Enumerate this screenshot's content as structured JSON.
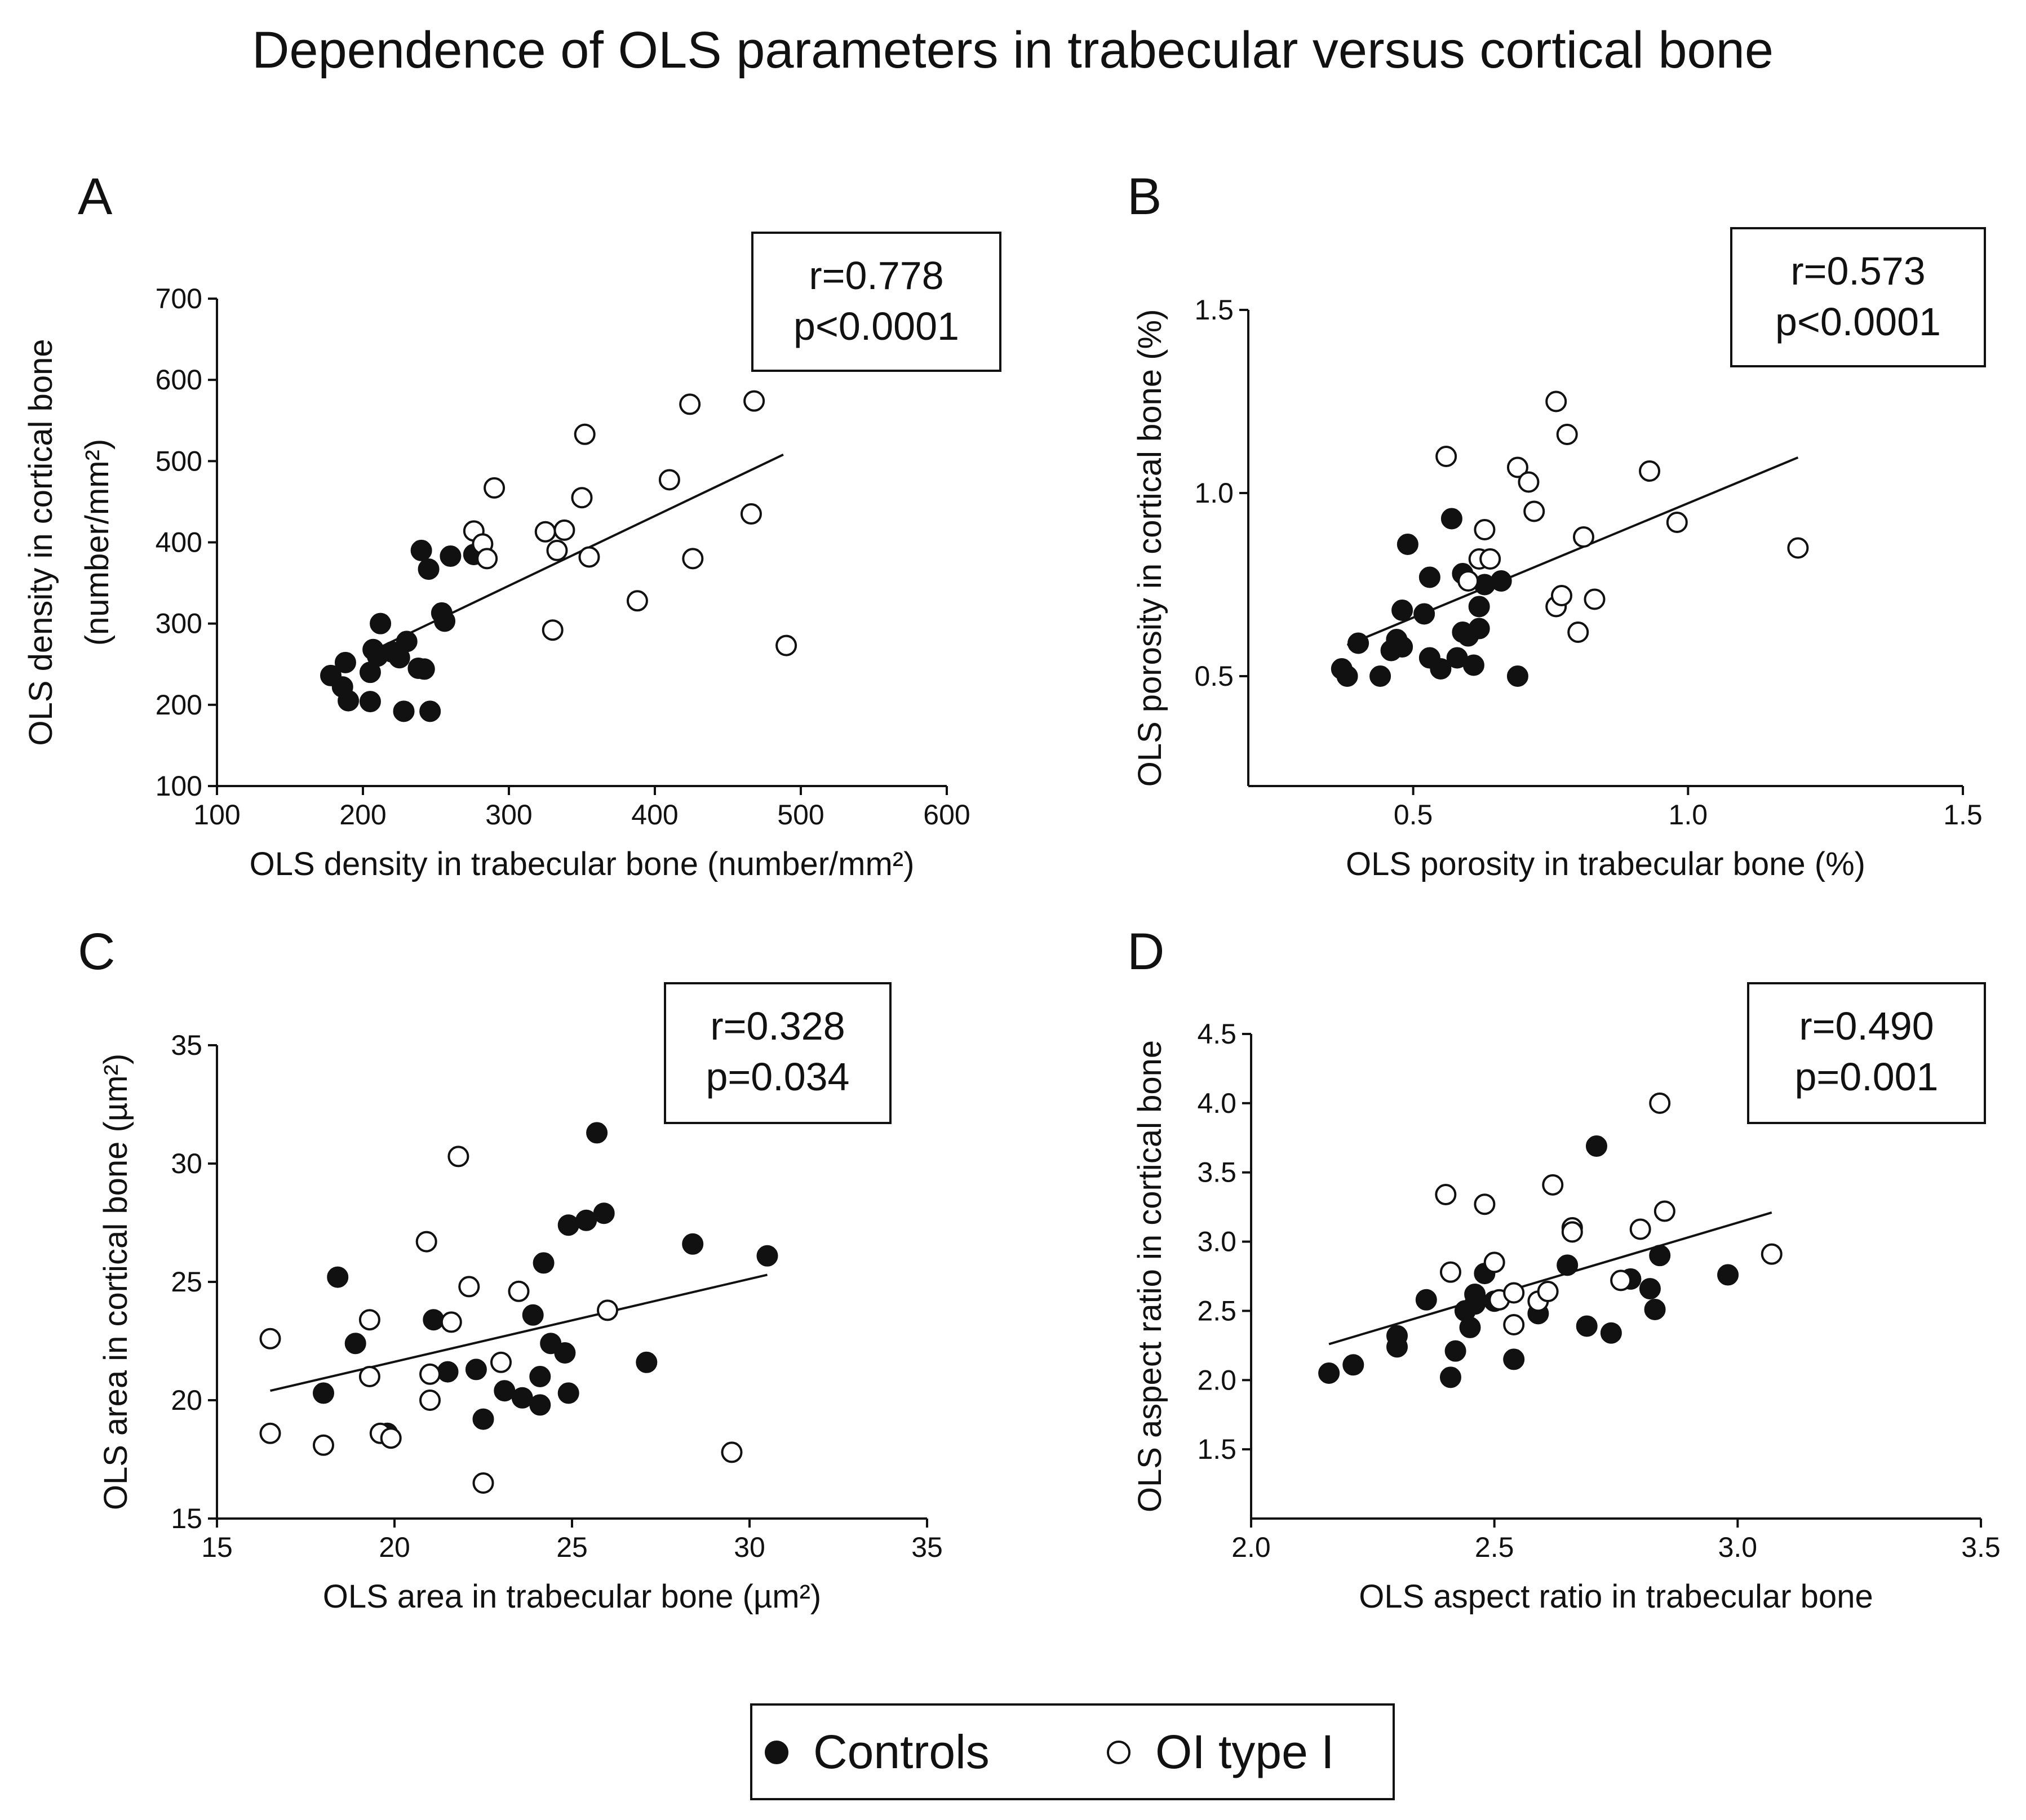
{
  "figure_title": "Dependence of OLS parameters in trabecular versus cortical bone",
  "legend": {
    "items": [
      {
        "label": "Controls",
        "marker": "filled-circle",
        "color": "#111111"
      },
      {
        "label": "OI type I",
        "marker": "open-circle",
        "color": "#ffffff"
      }
    ]
  },
  "chart_data": [
    {
      "panel": "A",
      "type": "scatter",
      "xlabel": "OLS density in trabecular bone (number/mm²)",
      "ylabel_line1": "OLS density in cortical bone",
      "ylabel_line2": "(number/mm²)",
      "xlim": [
        100,
        600
      ],
      "ylim": [
        100,
        700
      ],
      "xticks": [
        100,
        200,
        300,
        400,
        500,
        600
      ],
      "yticks": [
        100,
        200,
        300,
        400,
        500,
        600,
        700
      ],
      "stats": {
        "r": "r=0.778",
        "p": "p<0.0001"
      },
      "regression": {
        "x1": 205,
        "y1": 265,
        "x2": 488,
        "y2": 508
      },
      "series": [
        {
          "name": "Controls",
          "filled": true,
          "points": [
            [
              178,
              236
            ],
            [
              186,
              222
            ],
            [
              188,
              252
            ],
            [
              190,
              205
            ],
            [
              205,
              204
            ],
            [
              205,
              240
            ],
            [
              207,
              268
            ],
            [
              210,
              260
            ],
            [
              212,
              300
            ],
            [
              220,
              265
            ],
            [
              225,
              258
            ],
            [
              230,
              278
            ],
            [
              228,
              192
            ],
            [
              238,
              245
            ],
            [
              240,
              390
            ],
            [
              242,
              244
            ],
            [
              245,
              367
            ],
            [
              246,
              192
            ],
            [
              254,
              313
            ],
            [
              256,
              303
            ],
            [
              260,
              383
            ],
            [
              276,
              385
            ]
          ]
        },
        {
          "name": "OI type I",
          "filled": false,
          "points": [
            [
              276,
              414
            ],
            [
              282,
              398
            ],
            [
              285,
              380
            ],
            [
              290,
              467
            ],
            [
              325,
              413
            ],
            [
              330,
              292
            ],
            [
              333,
              390
            ],
            [
              338,
              415
            ],
            [
              350,
              455
            ],
            [
              352,
              533
            ],
            [
              355,
              382
            ],
            [
              388,
              328
            ],
            [
              410,
              477
            ],
            [
              424,
              570
            ],
            [
              426,
              380
            ],
            [
              466,
              435
            ],
            [
              468,
              574
            ],
            [
              490,
              273
            ]
          ]
        }
      ]
    },
    {
      "panel": "B",
      "type": "scatter",
      "xlabel": "OLS porosity in trabecular bone (%)",
      "ylabel_line1": "OLS porosity in cortical bone (%)",
      "ylabel_line2": "",
      "xlim": [
        0.2,
        1.5
      ],
      "ylim": [
        0.2,
        1.5
      ],
      "xticks": [
        0.5,
        1.0,
        1.5
      ],
      "yticks": [
        0.5,
        1.0,
        1.5
      ],
      "stats": {
        "r": "r=0.573",
        "p": "p<0.0001"
      },
      "regression": {
        "x1": 0.38,
        "y1": 0.585,
        "x2": 1.2,
        "y2": 1.097
      },
      "series": [
        {
          "name": "Controls",
          "filled": true,
          "points": [
            [
              0.37,
              0.52
            ],
            [
              0.38,
              0.5
            ],
            [
              0.4,
              0.59
            ],
            [
              0.44,
              0.5
            ],
            [
              0.46,
              0.57
            ],
            [
              0.47,
              0.6
            ],
            [
              0.48,
              0.58
            ],
            [
              0.48,
              0.68
            ],
            [
              0.49,
              0.86
            ],
            [
              0.52,
              0.67
            ],
            [
              0.53,
              0.77
            ],
            [
              0.53,
              0.55
            ],
            [
              0.55,
              0.52
            ],
            [
              0.57,
              0.93
            ],
            [
              0.58,
              0.55
            ],
            [
              0.59,
              0.62
            ],
            [
              0.59,
              0.78
            ],
            [
              0.6,
              0.61
            ],
            [
              0.61,
              0.53
            ],
            [
              0.62,
              0.63
            ],
            [
              0.62,
              0.69
            ],
            [
              0.63,
              0.75
            ],
            [
              0.66,
              0.76
            ],
            [
              0.69,
              0.5
            ]
          ]
        },
        {
          "name": "OI type I",
          "filled": false,
          "points": [
            [
              0.56,
              1.1
            ],
            [
              0.6,
              0.76
            ],
            [
              0.62,
              0.82
            ],
            [
              0.63,
              0.9
            ],
            [
              0.64,
              0.82
            ],
            [
              0.69,
              1.07
            ],
            [
              0.71,
              1.03
            ],
            [
              0.72,
              0.95
            ],
            [
              0.76,
              1.25
            ],
            [
              0.76,
              0.69
            ],
            [
              0.77,
              0.72
            ],
            [
              0.78,
              1.16
            ],
            [
              0.8,
              0.62
            ],
            [
              0.81,
              0.88
            ],
            [
              0.83,
              0.71
            ],
            [
              0.93,
              1.06
            ],
            [
              0.98,
              0.92
            ],
            [
              1.2,
              0.85
            ]
          ]
        }
      ]
    },
    {
      "panel": "C",
      "type": "scatter",
      "xlabel": "OLS area in trabecular bone (µm²)",
      "ylabel_line1": "OLS area in cortical bone (µm²)",
      "ylabel_line2": "",
      "xlim": [
        15,
        35
      ],
      "ylim": [
        15,
        35
      ],
      "xticks": [
        15,
        20,
        25,
        30,
        35
      ],
      "yticks": [
        15,
        20,
        25,
        30,
        35
      ],
      "stats": {
        "r": "r=0.328",
        "p": "p=0.034"
      },
      "regression": {
        "x1": 16.5,
        "y1": 20.4,
        "x2": 30.5,
        "y2": 25.3
      },
      "series": [
        {
          "name": "Controls",
          "filled": true,
          "points": [
            [
              18,
              20.3
            ],
            [
              18.4,
              25.2
            ],
            [
              18.9,
              22.4
            ],
            [
              19.8,
              18.6
            ],
            [
              21.1,
              23.4
            ],
            [
              21.5,
              21.2
            ],
            [
              22.3,
              21.3
            ],
            [
              22.5,
              19.2
            ],
            [
              23.1,
              20.4
            ],
            [
              23.6,
              20.1
            ],
            [
              23.9,
              23.6
            ],
            [
              24.1,
              21
            ],
            [
              24.1,
              19.8
            ],
            [
              24.2,
              25.8
            ],
            [
              24.4,
              22.4
            ],
            [
              24.8,
              22
            ],
            [
              24.9,
              20.3
            ],
            [
              24.9,
              27.4
            ],
            [
              25.4,
              27.6
            ],
            [
              25.7,
              31.3
            ],
            [
              25.9,
              27.9
            ],
            [
              27.1,
              21.6
            ],
            [
              28.4,
              26.6
            ],
            [
              30.5,
              26.1
            ]
          ]
        },
        {
          "name": "OI type I",
          "filled": false,
          "points": [
            [
              16.5,
              22.6
            ],
            [
              16.5,
              18.6
            ],
            [
              18,
              18.1
            ],
            [
              19.3,
              23.4
            ],
            [
              19.3,
              21
            ],
            [
              19.6,
              18.6
            ],
            [
              19.9,
              18.4
            ],
            [
              20.9,
              26.7
            ],
            [
              21,
              21.1
            ],
            [
              21,
              20
            ],
            [
              21.6,
              23.3
            ],
            [
              21.8,
              30.3
            ],
            [
              22.1,
              24.8
            ],
            [
              22.5,
              16.5
            ],
            [
              23,
              21.6
            ],
            [
              23.5,
              24.6
            ],
            [
              26,
              23.8
            ],
            [
              29.5,
              17.8
            ]
          ]
        }
      ]
    },
    {
      "panel": "D",
      "type": "scatter",
      "xlabel": "OLS aspect ratio in trabecular bone",
      "ylabel_line1": "OLS aspect ratio in cortical bone",
      "ylabel_line2": "",
      "xlim": [
        2.0,
        3.5
      ],
      "ylim": [
        1.0,
        4.5
      ],
      "xticks": [
        2.0,
        2.5,
        3.0,
        3.5
      ],
      "yticks": [
        1.5,
        2.0,
        2.5,
        3.0,
        3.5,
        4.0,
        4.5
      ],
      "stats": {
        "r": "r=0.490",
        "p": "p=0.001"
      },
      "regression": {
        "x1": 2.16,
        "y1": 2.26,
        "x2": 3.07,
        "y2": 3.21
      },
      "series": [
        {
          "name": "Controls",
          "filled": true,
          "points": [
            [
              2.16,
              2.05
            ],
            [
              2.21,
              2.11
            ],
            [
              2.3,
              2.32
            ],
            [
              2.3,
              2.24
            ],
            [
              2.36,
              2.58
            ],
            [
              2.41,
              2.02
            ],
            [
              2.42,
              2.21
            ],
            [
              2.44,
              2.5
            ],
            [
              2.45,
              2.38
            ],
            [
              2.46,
              2.62
            ],
            [
              2.46,
              2.55
            ],
            [
              2.48,
              2.77
            ],
            [
              2.5,
              2.57
            ],
            [
              2.54,
              2.15
            ],
            [
              2.59,
              2.48
            ],
            [
              2.65,
              2.83
            ],
            [
              2.69,
              2.39
            ],
            [
              2.71,
              3.69
            ],
            [
              2.74,
              2.34
            ],
            [
              2.78,
              2.73
            ],
            [
              2.82,
              2.66
            ],
            [
              2.83,
              2.51
            ],
            [
              2.84,
              2.9
            ],
            [
              2.98,
              2.76
            ]
          ]
        },
        {
          "name": "OI type I",
          "filled": false,
          "points": [
            [
              2.4,
              3.34
            ],
            [
              2.41,
              2.78
            ],
            [
              2.48,
              3.27
            ],
            [
              2.5,
              2.85
            ],
            [
              2.51,
              2.58
            ],
            [
              2.54,
              2.4
            ],
            [
              2.54,
              2.63
            ],
            [
              2.59,
              2.57
            ],
            [
              2.61,
              2.64
            ],
            [
              2.62,
              3.41
            ],
            [
              2.66,
              3.1
            ],
            [
              2.66,
              3.07
            ],
            [
              2.76,
              2.72
            ],
            [
              2.8,
              3.09
            ],
            [
              2.84,
              4.0
            ],
            [
              2.85,
              3.22
            ],
            [
              3.07,
              2.91
            ]
          ]
        }
      ]
    }
  ]
}
